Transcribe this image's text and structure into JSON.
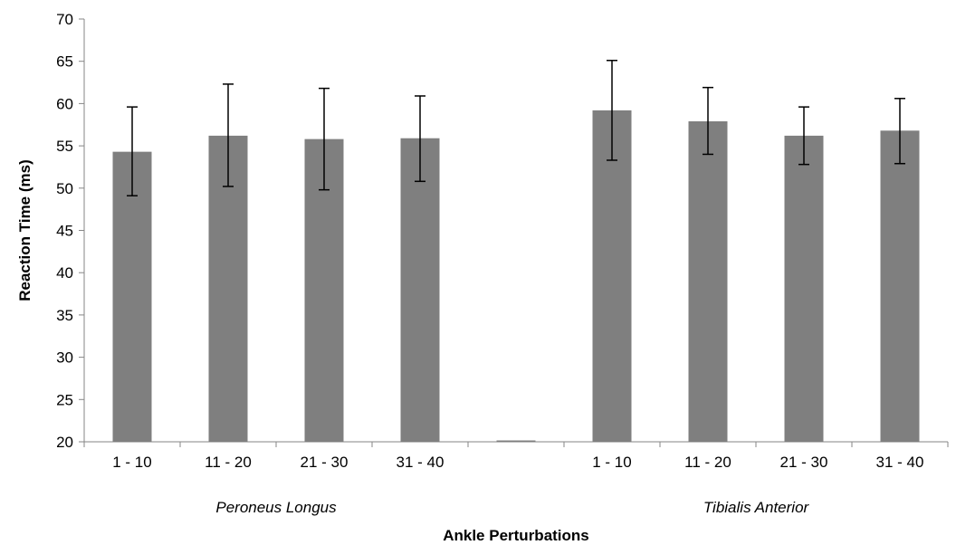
{
  "chart_data": {
    "type": "bar",
    "title": "",
    "xlabel": "Ankle Perturbations",
    "ylabel": "Reaction Time (ms)",
    "ylim": [
      20,
      70
    ],
    "ytick_step": 5,
    "grid": false,
    "legend": "none",
    "bar_color": "#7f7f7f",
    "categories": [
      "1 - 10",
      "11 - 20",
      "21 - 30",
      "31 - 40",
      "",
      "1 - 10",
      "11 - 20",
      "21 - 30",
      "31 - 40"
    ],
    "groups": [
      {
        "label": "Peroneus Longus",
        "categories": [
          0,
          1,
          2,
          3
        ]
      },
      {
        "label": "Tibialis Anterior",
        "categories": [
          5,
          6,
          7,
          8
        ]
      }
    ],
    "values": [
      54.3,
      56.2,
      55.8,
      55.9,
      null,
      59.2,
      57.9,
      56.2,
      56.8
    ],
    "error_low": [
      49.1,
      50.2,
      49.8,
      50.8,
      null,
      53.3,
      54.0,
      52.8,
      52.9
    ],
    "error_high": [
      59.6,
      62.3,
      61.8,
      60.9,
      null,
      65.1,
      61.9,
      59.6,
      60.6
    ]
  }
}
